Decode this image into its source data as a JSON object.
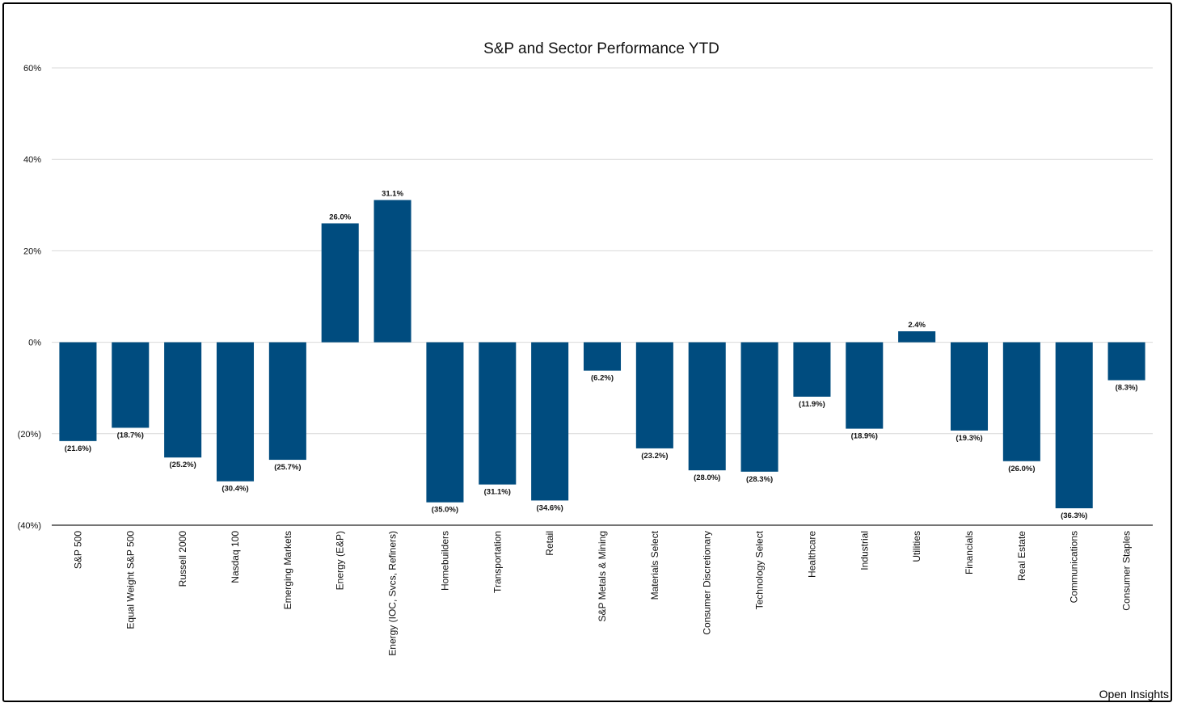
{
  "chart_data": {
    "type": "bar",
    "title": "S&P and Sector Performance YTD",
    "xlabel": "",
    "ylabel": "",
    "ylim": [
      -40,
      60
    ],
    "yticks": [
      60,
      40,
      20,
      0,
      -20,
      -40
    ],
    "ytick_labels": [
      "60%",
      "40%",
      "20%",
      "0%",
      "(20%)",
      "(40%)"
    ],
    "grid": true,
    "bar_color": "#004c7f",
    "categories": [
      "S&P 500",
      "Equal Weight S&P 500",
      "Russell 2000",
      "Nasdaq 100",
      "Emerging Markets",
      "Energy (E&P)",
      "Energy (IOC, Svcs, Refiners)",
      "Homebuilders",
      "Transportation",
      "Retail",
      "S&P Metals & Mining",
      "Materials Select",
      "Consumer Discretionary",
      "Technology Select",
      "Healthcare",
      "Industrial",
      "Utilities",
      "Financials",
      "Real Estate",
      "Communications",
      "Consumer Staples"
    ],
    "values": [
      -21.6,
      -18.7,
      -25.2,
      -30.4,
      -25.7,
      26.0,
      31.1,
      -35.0,
      -31.1,
      -34.6,
      -6.2,
      -23.2,
      -28.0,
      -28.3,
      -11.9,
      -18.9,
      2.4,
      -19.3,
      -26.0,
      -36.3,
      -8.3
    ],
    "data_labels": [
      "(21.6%)",
      "(18.7%)",
      "(25.2%)",
      "(30.4%)",
      "(25.7%)",
      "26.0%",
      "31.1%",
      "(35.0%)",
      "(31.1%)",
      "(34.6%)",
      "(6.2%)",
      "(23.2%)",
      "(28.0%)",
      "(28.3%)",
      "(11.9%)",
      "(18.9%)",
      "2.4%",
      "(19.3%)",
      "(26.0%)",
      "(36.3%)",
      "(8.3%)"
    ]
  },
  "source_label": "Open Insights"
}
